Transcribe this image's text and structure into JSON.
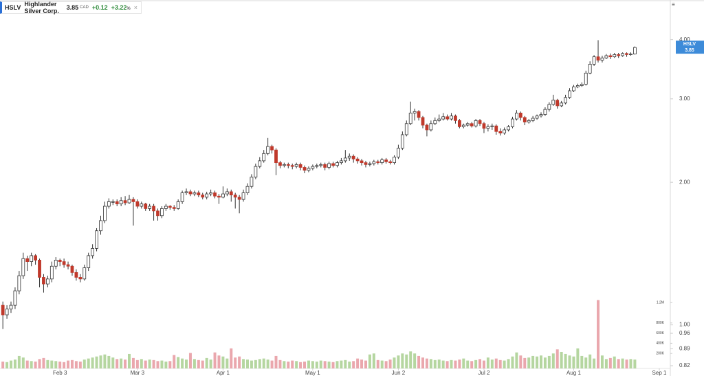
{
  "header": {
    "symbol": "HSLV",
    "name": "Highlander Silver Corp.",
    "price": "3.85",
    "currency": "CAD",
    "change": "+0.12",
    "change_pct": "+3.22",
    "pct_sign": "%"
  },
  "chart_data": {
    "type": "candlestick",
    "symbol": "HSLV",
    "last_label": "3.85",
    "log_scale": true,
    "xlim": [
      -0.7,
      163.7
    ],
    "xticks": [
      {
        "value": 14,
        "label": "Feb 3"
      },
      {
        "value": 33,
        "label": "Mar 3"
      },
      {
        "value": 54,
        "label": "Apr 1"
      },
      {
        "value": 76,
        "label": "May 1"
      },
      {
        "value": 97,
        "label": "Jun 2"
      },
      {
        "value": 118,
        "label": "Jul 2"
      },
      {
        "value": 140,
        "label": "Aug 1"
      },
      {
        "value": 161,
        "label": "Sep 1"
      }
    ],
    "ylim": [
      0.78,
      4.85
    ],
    "yticks": [
      {
        "value": 0.82,
        "label": "0.82"
      },
      {
        "value": 0.89,
        "label": "0.89"
      },
      {
        "value": 0.96,
        "label": "0.96"
      },
      {
        "value": 1,
        "label": "1.00"
      },
      {
        "value": 2,
        "label": "2.00"
      },
      {
        "value": 3,
        "label": "3.00"
      },
      {
        "value": 4,
        "label": "4.00"
      }
    ],
    "volume_ylim": [
      0,
      7150000
    ],
    "volume_ticks": [
      {
        "value": 200000,
        "label": "200K"
      },
      {
        "value": 400000,
        "label": "400K"
      },
      {
        "value": 600000,
        "label": "600K"
      },
      {
        "value": 800000,
        "label": "800K"
      },
      {
        "value": 1200000,
        "label": "1.2M"
      }
    ],
    "up_color": "#ffffff",
    "down_color": "#c0392b",
    "outline_color": "#333333",
    "up_volume_color": "#b5d6a0",
    "down_volume_color": "#eaa7ad",
    "label_color": "#3d8bd9",
    "open": [
      1.1,
      1.05,
      1.08,
      1.1,
      1.18,
      1.27,
      1.38,
      1.36,
      1.4,
      1.37,
      1.26,
      1.22,
      1.25,
      1.33,
      1.37,
      1.36,
      1.34,
      1.33,
      1.29,
      1.26,
      1.25,
      1.32,
      1.4,
      1.45,
      1.58,
      1.66,
      1.78,
      1.82,
      1.82,
      1.8,
      1.83,
      1.81,
      1.84,
      1.82,
      1.78,
      1.8,
      1.76,
      1.78,
      1.74,
      1.7,
      1.76,
      1.78,
      1.77,
      1.76,
      1.82,
      1.9,
      1.91,
      1.89,
      1.9,
      1.88,
      1.86,
      1.89,
      1.9,
      1.87,
      1.86,
      1.89,
      1.91,
      1.88,
      1.86,
      1.84,
      1.9,
      1.96,
      2.05,
      2.16,
      2.22,
      2.3,
      2.38,
      2.34,
      2.2,
      2.17,
      2.18,
      2.17,
      2.16,
      2.18,
      2.15,
      2.12,
      2.14,
      2.16,
      2.17,
      2.18,
      2.15,
      2.19,
      2.17,
      2.2,
      2.22,
      2.25,
      2.27,
      2.24,
      2.22,
      2.2,
      2.18,
      2.19,
      2.21,
      2.2,
      2.23,
      2.21,
      2.2,
      2.26,
      2.36,
      2.52,
      2.66,
      2.8,
      2.82,
      2.74,
      2.64,
      2.58,
      2.66,
      2.7,
      2.72,
      2.75,
      2.72,
      2.76,
      2.7,
      2.62,
      2.64,
      2.66,
      2.63,
      2.7,
      2.66,
      2.6,
      2.62,
      2.63,
      2.56,
      2.54,
      2.58,
      2.62,
      2.72,
      2.8,
      2.74,
      2.68,
      2.7,
      2.73,
      2.76,
      2.78,
      2.85,
      2.92,
      2.98,
      2.9,
      2.94,
      3.02,
      3.12,
      3.18,
      3.2,
      3.22,
      3.4,
      3.55,
      3.68,
      3.62,
      3.66,
      3.7,
      3.68,
      3.72,
      3.7,
      3.74,
      3.72,
      3.73
    ],
    "high": [
      1.12,
      1.1,
      1.12,
      1.2,
      1.3,
      1.42,
      1.4,
      1.42,
      1.41,
      1.38,
      1.28,
      1.27,
      1.36,
      1.39,
      1.38,
      1.38,
      1.36,
      1.34,
      1.31,
      1.28,
      1.34,
      1.42,
      1.48,
      1.6,
      1.7,
      1.82,
      1.85,
      1.84,
      1.84,
      1.86,
      1.87,
      1.88,
      1.86,
      1.84,
      1.82,
      1.81,
      1.8,
      1.8,
      1.76,
      1.78,
      1.8,
      1.79,
      1.79,
      1.84,
      1.92,
      1.94,
      1.93,
      1.92,
      1.92,
      1.9,
      1.91,
      1.93,
      1.92,
      1.89,
      1.96,
      1.94,
      1.93,
      1.9,
      1.88,
      1.93,
      1.99,
      2.08,
      2.19,
      2.26,
      2.34,
      2.48,
      2.4,
      2.36,
      2.22,
      2.2,
      2.2,
      2.19,
      2.2,
      2.2,
      2.17,
      2.16,
      2.18,
      2.19,
      2.2,
      2.2,
      2.21,
      2.21,
      2.22,
      2.25,
      2.34,
      2.3,
      2.29,
      2.26,
      2.24,
      2.22,
      2.21,
      2.23,
      2.23,
      2.25,
      2.25,
      2.23,
      2.28,
      2.4,
      2.56,
      2.7,
      2.96,
      2.86,
      2.84,
      2.76,
      2.66,
      2.7,
      2.74,
      2.78,
      2.8,
      2.78,
      2.8,
      2.78,
      2.72,
      2.66,
      2.68,
      2.68,
      2.72,
      2.72,
      2.68,
      2.65,
      2.66,
      2.65,
      2.6,
      2.61,
      2.64,
      2.75,
      2.84,
      2.82,
      2.76,
      2.72,
      2.76,
      2.78,
      2.81,
      2.88,
      2.95,
      3.06,
      3.0,
      2.97,
      3.06,
      3.16,
      3.21,
      3.23,
      3.25,
      3.44,
      3.6,
      3.71,
      3.99,
      3.7,
      3.73,
      3.74,
      3.75,
      3.75,
      3.76,
      3.76,
      3.76,
      3.87
    ],
    "low": [
      0.98,
      1.03,
      1.06,
      1.08,
      1.16,
      1.25,
      1.3,
      1.33,
      1.34,
      1.2,
      1.17,
      1.2,
      1.23,
      1.31,
      1.33,
      1.32,
      1.31,
      1.27,
      1.24,
      1.23,
      1.24,
      1.3,
      1.38,
      1.43,
      1.55,
      1.64,
      1.76,
      1.79,
      1.78,
      1.78,
      1.79,
      1.8,
      1.62,
      1.76,
      1.76,
      1.74,
      1.74,
      1.66,
      1.66,
      1.68,
      1.74,
      1.75,
      1.74,
      1.75,
      1.8,
      1.88,
      1.87,
      1.87,
      1.86,
      1.84,
      1.84,
      1.87,
      1.85,
      1.8,
      1.85,
      1.87,
      1.82,
      1.76,
      1.72,
      1.82,
      1.88,
      1.94,
      2.03,
      2.14,
      2.2,
      2.28,
      2.3,
      2.07,
      2.14,
      2.15,
      2.14,
      2.13,
      2.14,
      2.12,
      2.09,
      2.1,
      2.12,
      2.14,
      2.15,
      2.12,
      2.13,
      2.15,
      2.15,
      2.18,
      2.2,
      2.22,
      2.2,
      2.19,
      2.17,
      2.15,
      2.16,
      2.17,
      2.18,
      2.18,
      2.19,
      2.18,
      2.18,
      2.24,
      2.34,
      2.5,
      2.64,
      2.7,
      2.7,
      2.6,
      2.5,
      2.56,
      2.64,
      2.68,
      2.7,
      2.7,
      2.7,
      2.66,
      2.6,
      2.6,
      2.62,
      2.61,
      2.61,
      2.63,
      2.54,
      2.56,
      2.58,
      2.52,
      2.51,
      2.52,
      2.56,
      2.6,
      2.7,
      2.7,
      2.64,
      2.66,
      2.68,
      2.71,
      2.74,
      2.76,
      2.82,
      2.9,
      2.86,
      2.88,
      2.92,
      3.0,
      3.1,
      3.16,
      3.18,
      3.2,
      3.38,
      3.52,
      3.58,
      3.58,
      3.64,
      3.64,
      3.66,
      3.66,
      3.68,
      3.68,
      3.7,
      3.72
    ],
    "close": [
      1.05,
      1.08,
      1.1,
      1.18,
      1.27,
      1.38,
      1.36,
      1.4,
      1.37,
      1.26,
      1.22,
      1.25,
      1.33,
      1.37,
      1.36,
      1.34,
      1.33,
      1.29,
      1.26,
      1.25,
      1.32,
      1.4,
      1.45,
      1.58,
      1.66,
      1.78,
      1.82,
      1.82,
      1.8,
      1.83,
      1.81,
      1.84,
      1.82,
      1.78,
      1.8,
      1.76,
      1.78,
      1.74,
      1.7,
      1.76,
      1.78,
      1.77,
      1.76,
      1.82,
      1.9,
      1.91,
      1.89,
      1.9,
      1.88,
      1.86,
      1.89,
      1.9,
      1.87,
      1.86,
      1.89,
      1.91,
      1.88,
      1.86,
      1.84,
      1.9,
      1.96,
      2.05,
      2.16,
      2.22,
      2.3,
      2.38,
      2.34,
      2.2,
      2.17,
      2.18,
      2.17,
      2.16,
      2.18,
      2.15,
      2.12,
      2.14,
      2.16,
      2.17,
      2.18,
      2.15,
      2.19,
      2.17,
      2.2,
      2.22,
      2.25,
      2.27,
      2.24,
      2.22,
      2.2,
      2.18,
      2.19,
      2.21,
      2.2,
      2.23,
      2.21,
      2.2,
      2.26,
      2.36,
      2.52,
      2.66,
      2.8,
      2.82,
      2.74,
      2.64,
      2.58,
      2.66,
      2.7,
      2.72,
      2.75,
      2.72,
      2.76,
      2.7,
      2.62,
      2.64,
      2.66,
      2.63,
      2.7,
      2.66,
      2.6,
      2.62,
      2.63,
      2.56,
      2.54,
      2.58,
      2.62,
      2.72,
      2.8,
      2.74,
      2.68,
      2.7,
      2.73,
      2.76,
      2.78,
      2.85,
      2.92,
      2.98,
      2.9,
      2.94,
      3.02,
      3.12,
      3.18,
      3.2,
      3.22,
      3.4,
      3.55,
      3.68,
      3.62,
      3.66,
      3.7,
      3.68,
      3.72,
      3.7,
      3.74,
      3.72,
      3.73,
      3.85
    ],
    "volume": [
      40000,
      30000,
      60000,
      80000,
      150000,
      120000,
      60000,
      50000,
      40000,
      90000,
      110000,
      70000,
      60000,
      50000,
      40000,
      30000,
      60000,
      70000,
      50000,
      40000,
      80000,
      100000,
      120000,
      140000,
      160000,
      180000,
      150000,
      120000,
      90000,
      100000,
      80000,
      190000,
      110000,
      70000,
      90000,
      60000,
      80000,
      70000,
      50000,
      60000,
      40000,
      50000,
      170000,
      130000,
      100000,
      80000,
      210000,
      90000,
      70000,
      60000,
      110000,
      80000,
      220000,
      160000,
      140000,
      100000,
      300000,
      120000,
      140000,
      90000,
      80000,
      60000,
      70000,
      90000,
      100000,
      80000,
      60000,
      150000,
      70000,
      50000,
      40000,
      60000,
      50000,
      30000,
      40000,
      60000,
      50000,
      40000,
      60000,
      50000,
      40000,
      30000,
      50000,
      60000,
      70000,
      40000,
      50000,
      100000,
      80000,
      60000,
      180000,
      200000,
      70000,
      60000,
      50000,
      80000,
      120000,
      160000,
      200000,
      180000,
      240000,
      200000,
      150000,
      120000,
      100000,
      90000,
      70000,
      80000,
      60000,
      50000,
      70000,
      60000,
      80000,
      100000,
      60000,
      50000,
      70000,
      90000,
      60000,
      120000,
      80000,
      100000,
      70000,
      60000,
      90000,
      140000,
      220000,
      160000,
      110000,
      120000,
      150000,
      140000,
      160000,
      120000,
      150000,
      200000,
      280000,
      230000,
      190000,
      160000,
      140000,
      300000,
      150000,
      120000,
      180000,
      100000,
      1250000,
      160000,
      90000,
      110000,
      140000,
      90000,
      100000,
      80000,
      90000,
      80000
    ]
  }
}
